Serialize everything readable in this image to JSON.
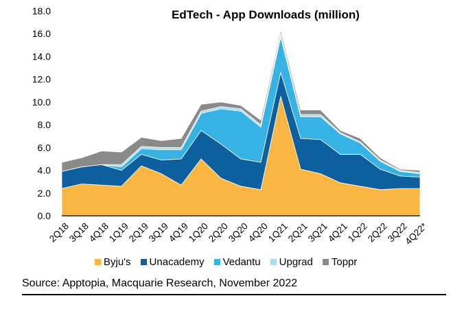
{
  "chart_data": {
    "type": "area",
    "stacked": true,
    "title": "EdTech - App Downloads (million)",
    "categories": [
      "2Q18",
      "3Q18",
      "4Q18",
      "1Q19",
      "2Q19",
      "3Q19",
      "4Q19",
      "1Q20",
      "2Q20",
      "3Q20",
      "4Q20",
      "1Q21",
      "2Q21",
      "3Q21",
      "4Q21",
      "1Q22",
      "2Q22",
      "3Q22",
      "4Q22*"
    ],
    "ylim": [
      0,
      18
    ],
    "yticks": [
      "0.0",
      "2.0",
      "4.0",
      "6.0",
      "8.0",
      "10.0",
      "12.0",
      "14.0",
      "16.0",
      "18.0"
    ],
    "series": [
      {
        "name": "Byju's",
        "color": "#F9B642",
        "values": [
          2.4,
          2.8,
          2.7,
          2.6,
          4.4,
          3.7,
          2.7,
          5.0,
          3.3,
          2.6,
          2.3,
          10.5,
          4.1,
          3.7,
          2.9,
          2.6,
          2.3,
          2.4,
          2.4
        ]
      },
      {
        "name": "Unacademy",
        "color": "#0E5F9E",
        "values": [
          1.5,
          1.5,
          1.8,
          1.4,
          1.0,
          1.2,
          2.3,
          2.5,
          3.0,
          2.4,
          2.4,
          2.1,
          2.7,
          3.0,
          2.5,
          2.8,
          1.8,
          1.1,
          1.0
        ]
      },
      {
        "name": "Vedantu",
        "color": "#37B2E5",
        "values": [
          0.0,
          0.0,
          0.0,
          0.3,
          0.5,
          0.9,
          0.8,
          1.5,
          3.1,
          4.2,
          3.1,
          3.1,
          1.9,
          2.0,
          1.8,
          1.0,
          0.7,
          0.4,
          0.3
        ]
      },
      {
        "name": "Upgrad",
        "color": "#A9DCF3",
        "values": [
          0.0,
          0.0,
          0.0,
          0.2,
          0.2,
          0.2,
          0.2,
          0.2,
          0.2,
          0.2,
          0.2,
          0.3,
          0.2,
          0.2,
          0.1,
          0.1,
          0.1,
          0.1,
          0.1
        ]
      },
      {
        "name": "Toppr",
        "color": "#8A8A8A",
        "values": [
          0.8,
          0.8,
          1.2,
          1.1,
          0.8,
          0.6,
          0.8,
          0.6,
          0.4,
          0.3,
          0.4,
          0.3,
          0.4,
          0.4,
          0.2,
          0.3,
          0.2,
          0.1,
          0.2
        ]
      }
    ],
    "legend_position": "bottom",
    "grid": false
  },
  "source_text": "Source: Apptopia, Macquarie Research, November 2022"
}
